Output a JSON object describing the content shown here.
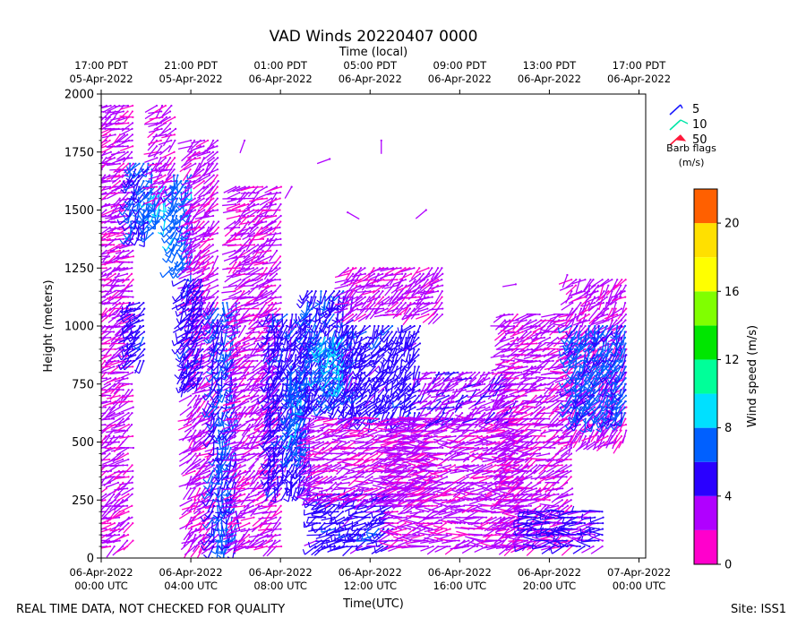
{
  "chart_data": {
    "type": "wind-barb",
    "title": "VAD Winds 20220407 0000",
    "top_axis_label": "Time (local)",
    "xlabel": "Time(UTC)",
    "ylabel": "Height (meters)",
    "xlim_hours": [
      0,
      24.3
    ],
    "ylim": [
      0,
      2000
    ],
    "bottom_ticks": [
      {
        "hour": 0,
        "line1": "06-Apr-2022",
        "line2": "00:00 UTC"
      },
      {
        "hour": 4,
        "line1": "06-Apr-2022",
        "line2": "04:00 UTC"
      },
      {
        "hour": 8,
        "line1": "06-Apr-2022",
        "line2": "08:00 UTC"
      },
      {
        "hour": 12,
        "line1": "06-Apr-2022",
        "line2": "12:00 UTC"
      },
      {
        "hour": 16,
        "line1": "06-Apr-2022",
        "line2": "16:00 UTC"
      },
      {
        "hour": 20,
        "line1": "06-Apr-2022",
        "line2": "20:00 UTC"
      },
      {
        "hour": 24,
        "line1": "07-Apr-2022",
        "line2": "00:00 UTC"
      }
    ],
    "top_ticks": [
      {
        "hour": 0,
        "line1": "17:00 PDT",
        "line2": "05-Apr-2022"
      },
      {
        "hour": 4,
        "line1": "21:00 PDT",
        "line2": "05-Apr-2022"
      },
      {
        "hour": 8,
        "line1": "01:00 PDT",
        "line2": "06-Apr-2022"
      },
      {
        "hour": 12,
        "line1": "05:00 PDT",
        "line2": "06-Apr-2022"
      },
      {
        "hour": 16,
        "line1": "09:00 PDT",
        "line2": "06-Apr-2022"
      },
      {
        "hour": 20,
        "line1": "13:00 PDT",
        "line2": "06-Apr-2022"
      },
      {
        "hour": 24,
        "line1": "17:00 PDT",
        "line2": "06-Apr-2022"
      }
    ],
    "y_ticks": [
      0,
      250,
      500,
      750,
      1000,
      1250,
      1500,
      1750,
      2000
    ],
    "legend": {
      "title_line1": "Barb flags",
      "title_line2": "(m/s)",
      "entries": [
        {
          "value": "5",
          "color": "#1a1aff"
        },
        {
          "value": "10",
          "color": "#00e6a8"
        },
        {
          "value": "50",
          "color": "#ff1a3c"
        }
      ]
    },
    "colorbar": {
      "label": "Wind speed (m/s)",
      "min": 0,
      "max": 22,
      "step": 2,
      "ticks": [
        0,
        4,
        8,
        12,
        16,
        20
      ],
      "colors": [
        "#ff00cc",
        "#b000ff",
        "#2a00ff",
        "#0060ff",
        "#00e0ff",
        "#00ff99",
        "#00e600",
        "#80ff00",
        "#ffff00",
        "#ffe000",
        "#ff6000"
      ]
    },
    "wind_regions": [
      {
        "t0": 0.0,
        "t1": 1.4,
        "h0": 0,
        "h1": 1950,
        "speed_ms": 2.5,
        "dir": 245
      },
      {
        "t0": 1.3,
        "t1": 1.9,
        "h0": 850,
        "h1": 1100,
        "speed_ms": 5,
        "dir": 225
      },
      {
        "t0": 1.3,
        "t1": 2.3,
        "h0": 1400,
        "h1": 1700,
        "speed_ms": 6,
        "dir": 210
      },
      {
        "t0": 2.2,
        "t1": 2.8,
        "h0": 1450,
        "h1": 1600,
        "speed_ms": 8,
        "dir": 200
      },
      {
        "t0": 2.5,
        "t1": 3.4,
        "h0": 1550,
        "h1": 1950,
        "speed_ms": 2.5,
        "dir": 235
      },
      {
        "t0": 3.2,
        "t1": 4.0,
        "h0": 1250,
        "h1": 1650,
        "speed_ms": 7,
        "dir": 200
      },
      {
        "t0": 4.0,
        "t1": 5.2,
        "h0": 50,
        "h1": 1800,
        "speed_ms": 2.5,
        "dir": 230
      },
      {
        "t0": 3.7,
        "t1": 4.6,
        "h0": 750,
        "h1": 1200,
        "speed_ms": 5,
        "dir": 215
      },
      {
        "t0": 5.0,
        "t1": 6.0,
        "h0": 50,
        "h1": 1100,
        "speed_ms": 6,
        "dir": 195
      },
      {
        "t0": 6.0,
        "t1": 8.0,
        "h0": 50,
        "h1": 1600,
        "speed_ms": 2.5,
        "dir": 240
      },
      {
        "t0": 7.5,
        "t1": 9.3,
        "h0": 300,
        "h1": 1050,
        "speed_ms": 5,
        "dir": 205
      },
      {
        "t0": 8.5,
        "t1": 9.1,
        "h0": 450,
        "h1": 800,
        "speed_ms": 7,
        "dir": 200
      },
      {
        "t0": 9.2,
        "t1": 11.2,
        "h0": 650,
        "h1": 1150,
        "speed_ms": 5.5,
        "dir": 210
      },
      {
        "t0": 9.8,
        "t1": 10.8,
        "h0": 750,
        "h1": 950,
        "speed_ms": 8,
        "dir": 205
      },
      {
        "t0": 11.0,
        "t1": 14.3,
        "h0": 600,
        "h1": 1000,
        "speed_ms": 5,
        "dir": 215
      },
      {
        "t0": 9.6,
        "t1": 13.0,
        "h0": 50,
        "h1": 280,
        "speed_ms": 5,
        "dir": 250
      },
      {
        "t0": 9.3,
        "t1": 15.0,
        "h0": 250,
        "h1": 600,
        "speed_ms": 2.5,
        "dir": 255
      },
      {
        "t0": 11.0,
        "t1": 15.3,
        "h0": 1050,
        "h1": 1250,
        "speed_ms": 2.5,
        "dir": 240
      },
      {
        "t0": 13.0,
        "t1": 19.0,
        "h0": 50,
        "h1": 600,
        "speed_ms": 2.5,
        "dir": 260
      },
      {
        "t0": 14.5,
        "t1": 18.5,
        "h0": 600,
        "h1": 800,
        "speed_ms": 3.5,
        "dir": 235
      },
      {
        "t0": 18.0,
        "t1": 21.0,
        "h0": 50,
        "h1": 1050,
        "speed_ms": 2.5,
        "dir": 250
      },
      {
        "t0": 19.0,
        "t1": 22.5,
        "h0": 50,
        "h1": 200,
        "speed_ms": 4.5,
        "dir": 265
      },
      {
        "t0": 21.0,
        "t1": 23.4,
        "h0": 500,
        "h1": 1200,
        "speed_ms": 2.5,
        "dir": 225
      },
      {
        "t0": 21.0,
        "t1": 23.5,
        "h0": 600,
        "h1": 1000,
        "speed_ms": 6.5,
        "dir": 210
      }
    ],
    "scattered_barbs": [
      {
        "t": 6.4,
        "h": 1800,
        "speed_ms": 2.5,
        "dir": 200
      },
      {
        "t": 10.2,
        "h": 1720,
        "speed_ms": 2.5,
        "dir": 250
      },
      {
        "t": 12.5,
        "h": 1800,
        "speed_ms": 2.5,
        "dir": 180
      },
      {
        "t": 11.0,
        "h": 1490,
        "speed_ms": 2.5,
        "dir": 120
      },
      {
        "t": 14.5,
        "h": 1500,
        "speed_ms": 2.5,
        "dir": 230
      },
      {
        "t": 8.5,
        "h": 1600,
        "speed_ms": 2.5,
        "dir": 210
      },
      {
        "t": 18.5,
        "h": 1180,
        "speed_ms": 2.5,
        "dir": 260
      },
      {
        "t": 20.8,
        "h": 1220,
        "speed_ms": 2.5,
        "dir": 200
      }
    ]
  },
  "footer": {
    "left": "REAL TIME DATA, NOT CHECKED FOR QUALITY",
    "right": "Site: ISS1"
  }
}
